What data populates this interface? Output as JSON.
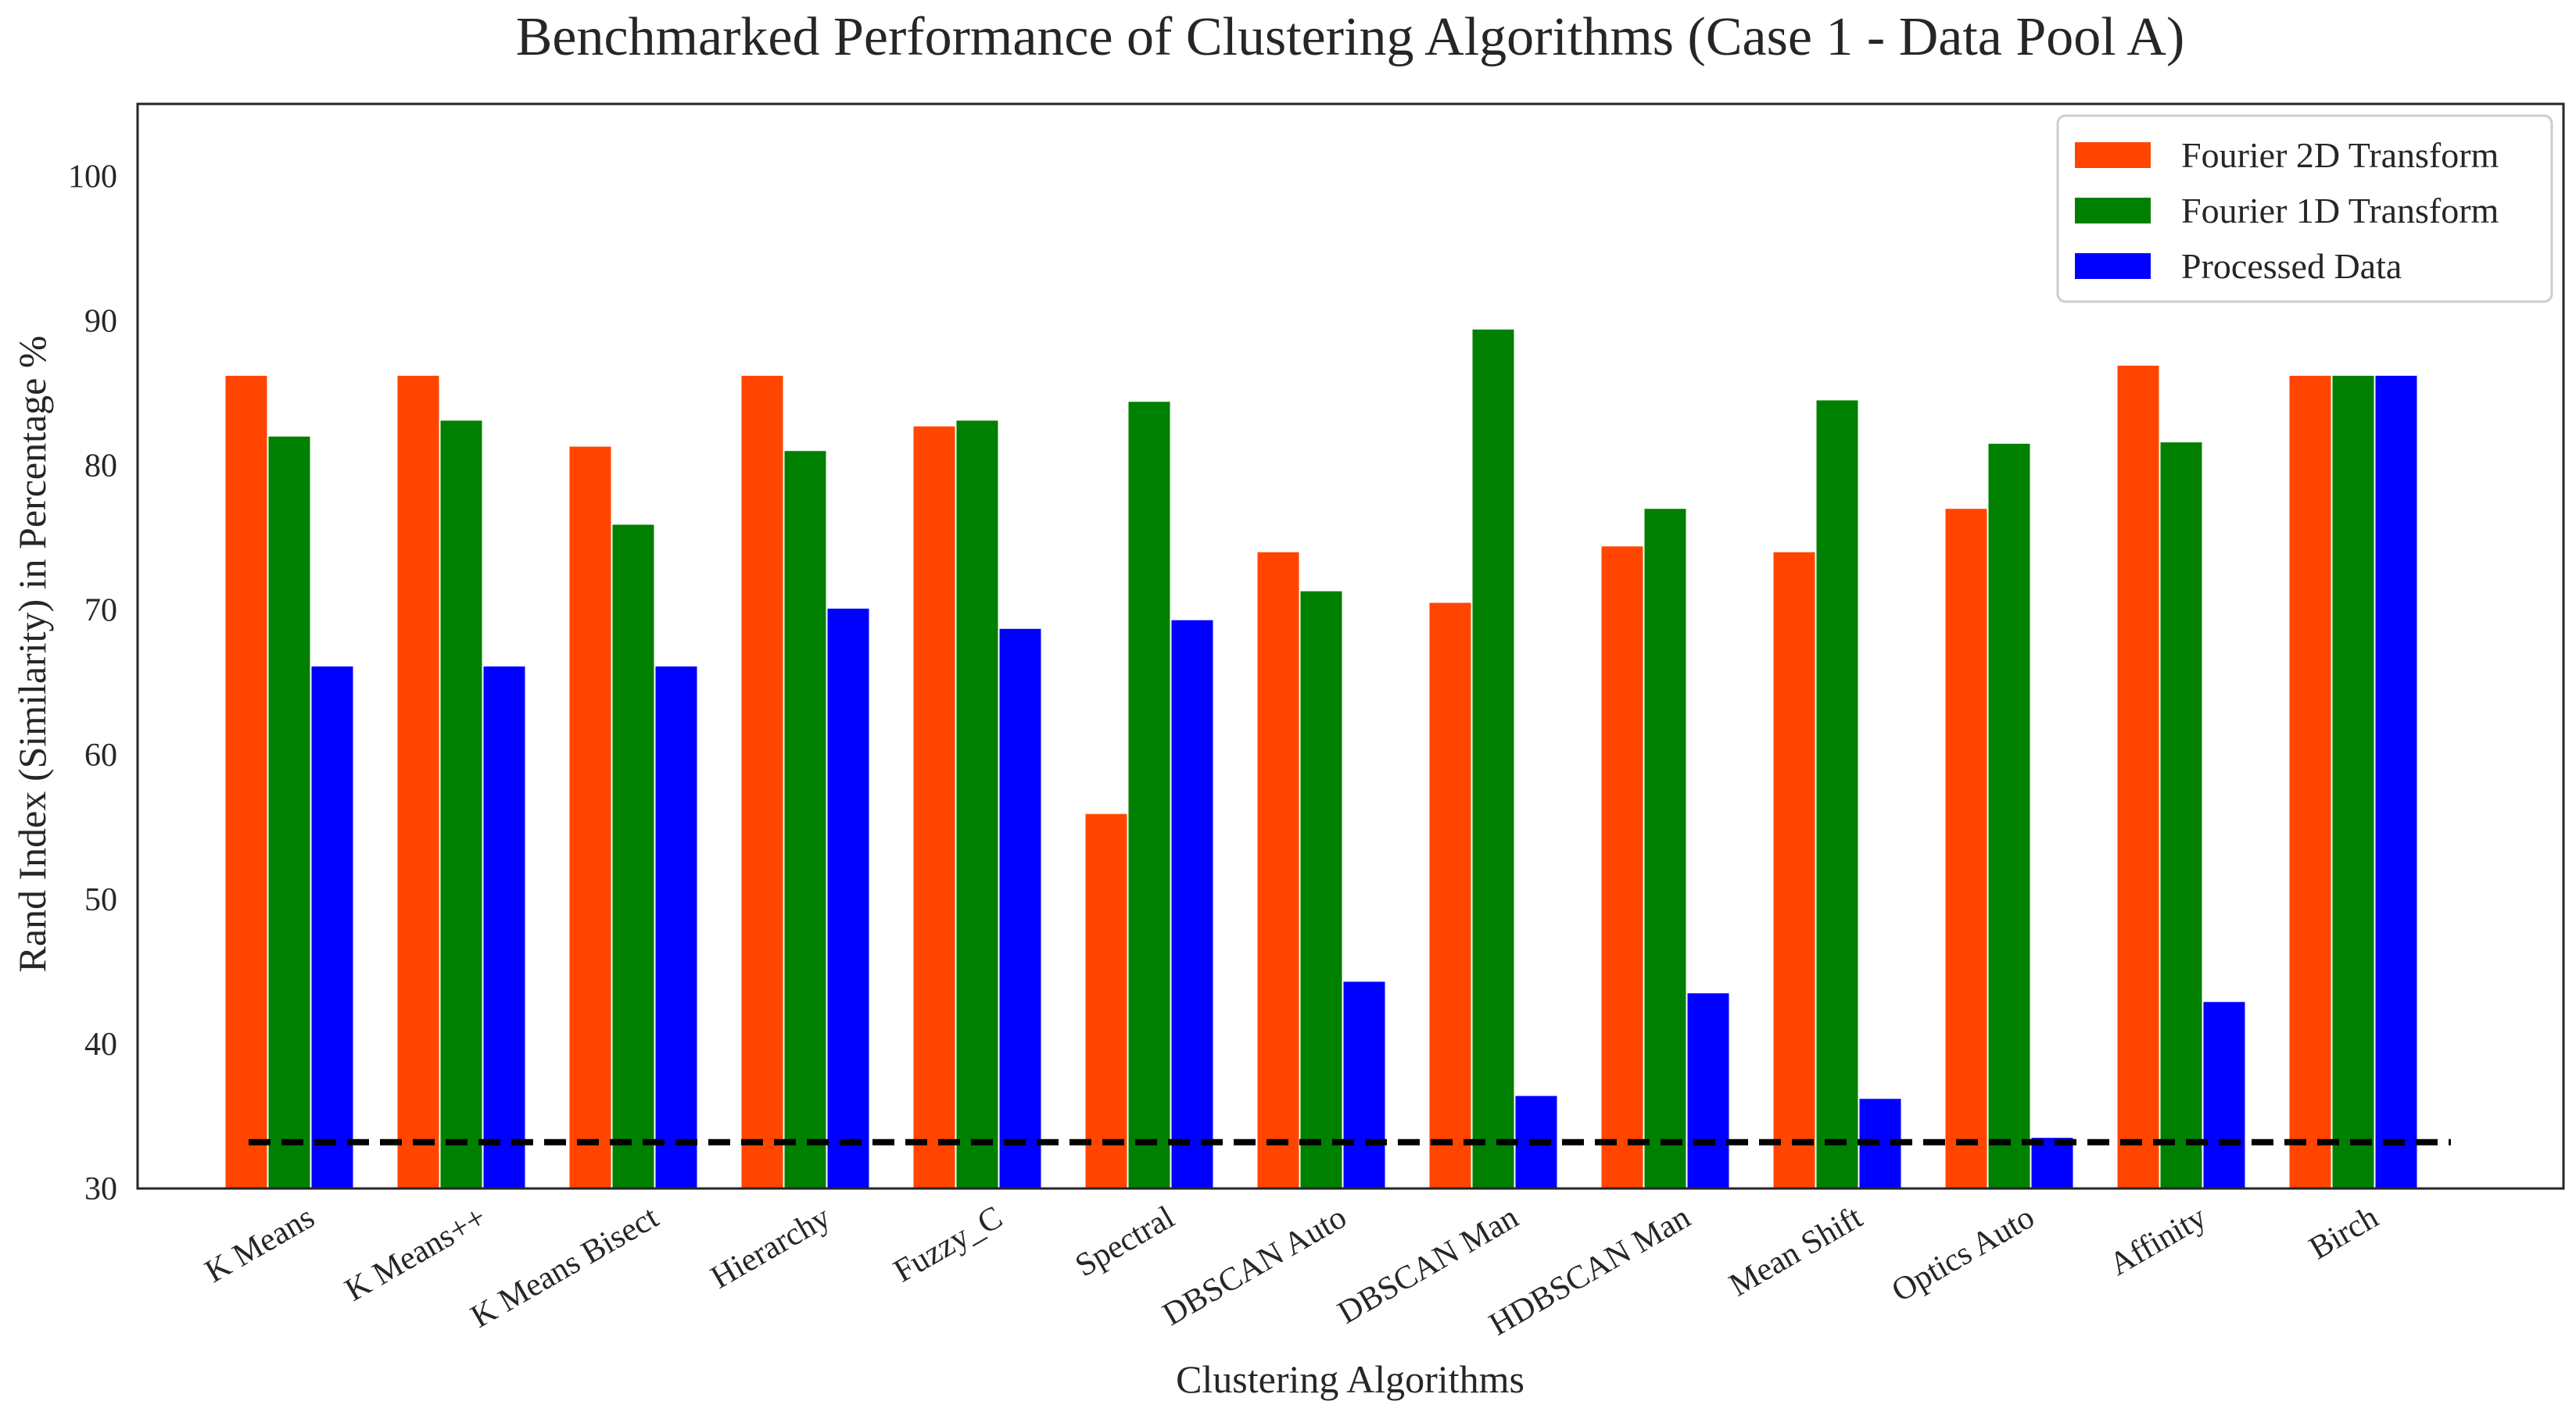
{
  "chart_data": {
    "type": "bar",
    "title": "Benchmarked Performance of Clustering Algorithms (Case 1 - Data Pool A)",
    "xlabel": "Clustering Algorithms",
    "ylabel": "Rand Index (Similarity) in Percentage %",
    "ylim": [
      30,
      105
    ],
    "yticks": [
      30,
      40,
      50,
      60,
      70,
      80,
      90,
      100
    ],
    "grid": false,
    "legend_position": "top-right",
    "categories": [
      "K Means",
      "K Means++",
      "K Means Bisect",
      "Hierarchy",
      "Fuzzy_C",
      "Spectral",
      "DBSCAN Auto",
      "DBSCAN Man",
      "HDBSCAN Man",
      "Mean Shift",
      "Optics Auto",
      "Affinity",
      "Birch"
    ],
    "series": [
      {
        "name": "Fourier 2D Transform",
        "color": "#FF4500",
        "values": [
          86.2,
          86.2,
          81.3,
          86.2,
          82.7,
          55.9,
          74.0,
          70.5,
          74.4,
          74.0,
          77.0,
          86.9,
          86.2
        ]
      },
      {
        "name": "Fourier 1D Transform",
        "color": "#008000",
        "values": [
          82.0,
          83.1,
          75.9,
          81.0,
          83.1,
          84.4,
          71.3,
          89.4,
          77.0,
          84.5,
          81.5,
          81.6,
          86.2
        ]
      },
      {
        "name": "Processed Data",
        "color": "#0000FF",
        "values": [
          66.1,
          66.1,
          66.1,
          70.1,
          68.7,
          69.3,
          44.3,
          36.4,
          43.5,
          36.2,
          33.5,
          42.9,
          86.2
        ]
      }
    ],
    "reference_line": {
      "value": 33.2,
      "color": "#000000",
      "style": "dashed"
    }
  }
}
